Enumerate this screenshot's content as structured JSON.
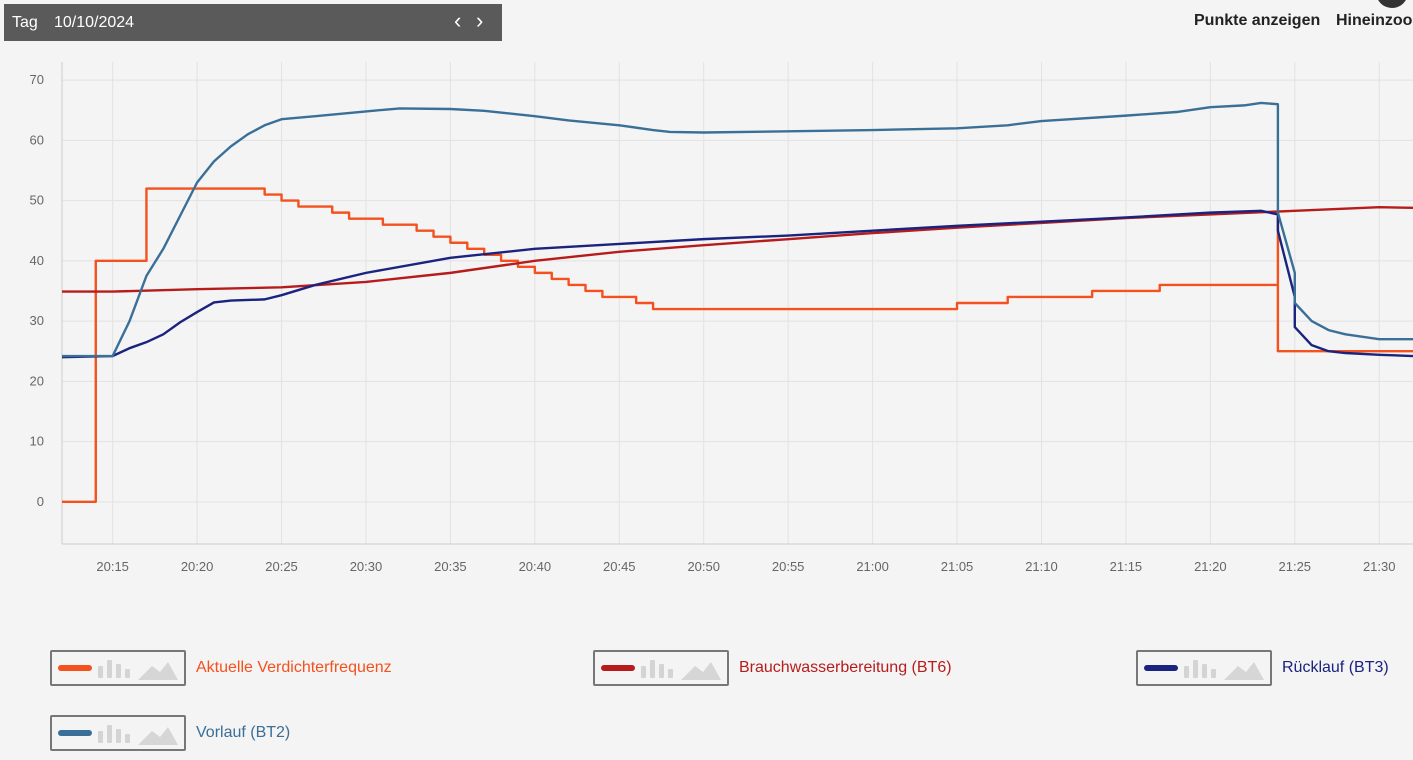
{
  "header": {
    "period_label": "Tag",
    "date": "10/10/2024",
    "prev_icon": "‹",
    "next_icon": "›",
    "show_points_label": "Punkte anzeigen",
    "zoom_in_label": "Hineinzoom"
  },
  "chart_data": {
    "type": "line",
    "title": "",
    "xlabel": "",
    "ylabel": "",
    "x_axis": {
      "range": [
        "20:12",
        "21:32"
      ],
      "ticks": [
        "20:15",
        "20:20",
        "20:25",
        "20:30",
        "20:35",
        "20:40",
        "20:45",
        "20:50",
        "20:55",
        "21:00",
        "21:05",
        "21:10",
        "21:15",
        "21:20",
        "21:25",
        "21:30"
      ]
    },
    "y_axis": {
      "range": [
        -7,
        73
      ],
      "ticks": [
        0,
        10,
        20,
        30,
        40,
        50,
        60,
        70
      ]
    },
    "grid": true,
    "legend_position": "bottom",
    "series": [
      {
        "name": "Aktuelle Verdichterfrequenz",
        "color": "#f4511e",
        "step": true,
        "points": [
          [
            "20:12",
            0
          ],
          [
            "20:14",
            40
          ],
          [
            "20:16",
            40
          ],
          [
            "20:17",
            52
          ],
          [
            "20:24",
            51
          ],
          [
            "20:25",
            50
          ],
          [
            "20:26",
            49
          ],
          [
            "20:28",
            48
          ],
          [
            "20:29",
            47
          ],
          [
            "20:31",
            46
          ],
          [
            "20:33",
            45
          ],
          [
            "20:34",
            44
          ],
          [
            "20:35",
            43
          ],
          [
            "20:36",
            42
          ],
          [
            "20:37",
            41
          ],
          [
            "20:38",
            40
          ],
          [
            "20:39",
            39
          ],
          [
            "20:40",
            38
          ],
          [
            "20:41",
            37
          ],
          [
            "20:42",
            36
          ],
          [
            "20:43",
            35
          ],
          [
            "20:44",
            34
          ],
          [
            "20:46",
            33
          ],
          [
            "20:47",
            32
          ],
          [
            "21:05",
            33
          ],
          [
            "21:08",
            34
          ],
          [
            "21:13",
            35
          ],
          [
            "21:17",
            36
          ],
          [
            "21:19",
            36
          ],
          [
            "21:24",
            47
          ],
          [
            "21:24",
            25
          ],
          [
            "21:32",
            25
          ]
        ]
      },
      {
        "name": "Brauchwasserbereitung (BT6)",
        "color": "#b71c1c",
        "points": [
          [
            "20:12",
            34.9
          ],
          [
            "20:15",
            34.9
          ],
          [
            "20:20",
            35.3
          ],
          [
            "20:25",
            35.6
          ],
          [
            "20:30",
            36.5
          ],
          [
            "20:35",
            38.0
          ],
          [
            "20:40",
            40.0
          ],
          [
            "20:45",
            41.5
          ],
          [
            "20:50",
            42.6
          ],
          [
            "20:55",
            43.6
          ],
          [
            "21:00",
            44.6
          ],
          [
            "21:05",
            45.5
          ],
          [
            "21:10",
            46.3
          ],
          [
            "21:15",
            47.1
          ],
          [
            "21:20",
            47.7
          ],
          [
            "21:25",
            48.3
          ],
          [
            "21:30",
            48.9
          ],
          [
            "21:32",
            48.8
          ]
        ]
      },
      {
        "name": "Rücklauf (BT3)",
        "color": "#1a237e",
        "points": [
          [
            "20:12",
            24.0
          ],
          [
            "20:15",
            24.2
          ],
          [
            "20:16",
            25.5
          ],
          [
            "20:17",
            26.5
          ],
          [
            "20:18",
            27.8
          ],
          [
            "20:19",
            29.8
          ],
          [
            "20:20",
            31.5
          ],
          [
            "20:21",
            33.1
          ],
          [
            "20:22",
            33.4
          ],
          [
            "20:24",
            33.6
          ],
          [
            "20:25",
            34.3
          ],
          [
            "20:27",
            36.0
          ],
          [
            "20:30",
            38.0
          ],
          [
            "20:35",
            40.5
          ],
          [
            "20:40",
            42.0
          ],
          [
            "20:45",
            42.8
          ],
          [
            "20:50",
            43.6
          ],
          [
            "20:55",
            44.2
          ],
          [
            "21:00",
            45.0
          ],
          [
            "21:05",
            45.8
          ],
          [
            "21:10",
            46.5
          ],
          [
            "21:15",
            47.2
          ],
          [
            "21:20",
            48.0
          ],
          [
            "21:23",
            48.3
          ],
          [
            "21:24",
            47.7
          ],
          [
            "21:24",
            45.0
          ],
          [
            "21:25",
            34.0
          ],
          [
            "21:25",
            29.0
          ],
          [
            "21:26",
            26.0
          ],
          [
            "21:27",
            25.0
          ],
          [
            "21:28",
            24.7
          ],
          [
            "21:30",
            24.4
          ],
          [
            "21:32",
            24.2
          ]
        ]
      },
      {
        "name": "Vorlauf (BT2)",
        "color": "#3a6f98",
        "points": [
          [
            "20:12",
            24.2
          ],
          [
            "20:15",
            24.2
          ],
          [
            "20:16",
            30.0
          ],
          [
            "20:17",
            37.5
          ],
          [
            "20:18",
            42.0
          ],
          [
            "20:19",
            47.5
          ],
          [
            "20:20",
            53.0
          ],
          [
            "20:21",
            56.5
          ],
          [
            "20:22",
            59.0
          ],
          [
            "20:23",
            61.0
          ],
          [
            "20:24",
            62.5
          ],
          [
            "20:25",
            63.5
          ],
          [
            "20:27",
            64.0
          ],
          [
            "20:30",
            64.8
          ],
          [
            "20:32",
            65.3
          ],
          [
            "20:35",
            65.2
          ],
          [
            "20:37",
            64.9
          ],
          [
            "20:40",
            64.0
          ],
          [
            "20:42",
            63.3
          ],
          [
            "20:45",
            62.5
          ],
          [
            "20:47",
            61.7
          ],
          [
            "20:48",
            61.4
          ],
          [
            "20:50",
            61.3
          ],
          [
            "20:55",
            61.5
          ],
          [
            "21:00",
            61.7
          ],
          [
            "21:05",
            62.0
          ],
          [
            "21:08",
            62.5
          ],
          [
            "21:10",
            63.2
          ],
          [
            "21:15",
            64.1
          ],
          [
            "21:18",
            64.7
          ],
          [
            "21:20",
            65.5
          ],
          [
            "21:22",
            65.8
          ],
          [
            "21:23",
            66.2
          ],
          [
            "21:24",
            66.0
          ],
          [
            "21:24",
            60.0
          ],
          [
            "21:24",
            48.0
          ],
          [
            "21:25",
            38.0
          ],
          [
            "21:25",
            33.0
          ],
          [
            "21:26",
            30.0
          ],
          [
            "21:27",
            28.5
          ],
          [
            "21:28",
            27.8
          ],
          [
            "21:30",
            27.0
          ],
          [
            "21:32",
            27.0
          ]
        ]
      }
    ]
  }
}
